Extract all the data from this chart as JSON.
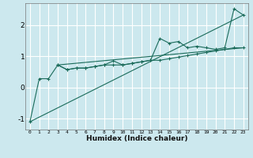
{
  "title": "",
  "xlabel": "Humidex (Indice chaleur)",
  "bg_color": "#cce8ee",
  "grid_color": "#ffffff",
  "line_color": "#1a6b5a",
  "xlim": [
    -0.5,
    23.5
  ],
  "ylim": [
    -1.35,
    2.7
  ],
  "yticks": [
    -1,
    0,
    1,
    2
  ],
  "xticks": [
    0,
    1,
    2,
    3,
    4,
    5,
    6,
    7,
    8,
    9,
    10,
    11,
    12,
    13,
    14,
    15,
    16,
    17,
    18,
    19,
    20,
    21,
    22,
    23
  ],
  "line1_x": [
    0,
    1,
    2,
    3,
    4,
    5,
    6,
    7,
    8,
    9,
    10,
    11,
    12,
    13,
    14,
    15,
    16,
    17,
    18,
    19,
    20,
    21,
    22,
    23
  ],
  "line1_y": [
    -1.1,
    0.28,
    0.28,
    0.72,
    0.57,
    0.62,
    0.62,
    0.67,
    0.72,
    0.72,
    0.72,
    0.77,
    0.82,
    0.87,
    0.87,
    0.92,
    0.97,
    1.02,
    1.07,
    1.12,
    1.17,
    1.22,
    1.27,
    1.27
  ],
  "line2_x": [
    3,
    4,
    5,
    6,
    7,
    8,
    9,
    10,
    11,
    12,
    13,
    14,
    15,
    16,
    17,
    18,
    19,
    20,
    21,
    22,
    23
  ],
  "line2_y": [
    0.72,
    0.57,
    0.62,
    0.62,
    0.67,
    0.72,
    0.85,
    0.72,
    0.77,
    0.82,
    0.87,
    1.57,
    1.42,
    1.47,
    1.27,
    1.32,
    1.27,
    1.22,
    1.27,
    2.52,
    2.32
  ],
  "line3_x": [
    0,
    23
  ],
  "line3_y": [
    -1.1,
    2.32
  ],
  "line4_x": [
    3,
    23
  ],
  "line4_y": [
    0.72,
    1.27
  ]
}
